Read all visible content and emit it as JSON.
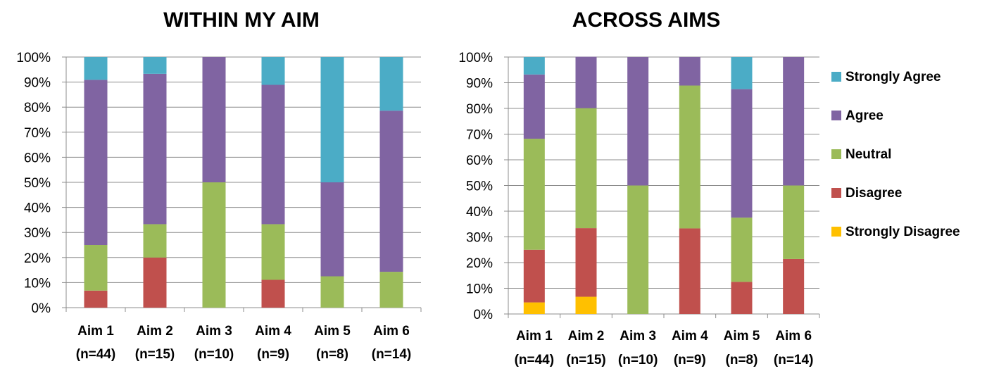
{
  "colors": {
    "Strongly Agree": "#4BACC6",
    "Agree": "#8064A2",
    "Neutral": "#9BBB59",
    "Disagree": "#C0504D",
    "Strongly Disagree": "#FFC000"
  },
  "legend": {
    "items": [
      "Strongly Agree",
      "Agree",
      "Neutral",
      "Disagree",
      "Strongly Disagree"
    ],
    "placement": "right"
  },
  "chart_data": [
    {
      "type": "bar",
      "stacked": true,
      "normalized": true,
      "title": "WITHIN MY AIM",
      "categories": [
        "Aim 1",
        "Aim 2",
        "Aim 3",
        "Aim 4",
        "Aim 5",
        "Aim 6"
      ],
      "category_sublabels": [
        "(n=44)",
        "(n=15)",
        "(n=10)",
        "(n=9)",
        "(n=8)",
        "(n=14)"
      ],
      "yticks": [
        "0%",
        "10%",
        "20%",
        "30%",
        "40%",
        "50%",
        "60%",
        "70%",
        "80%",
        "90%",
        "100%"
      ],
      "ylim": [
        0,
        100
      ],
      "grid": true,
      "series": [
        {
          "name": "Strongly Disagree",
          "values": [
            0,
            0,
            0,
            0,
            0,
            0
          ]
        },
        {
          "name": "Disagree",
          "values": [
            6.8,
            20,
            0,
            11.1,
            0,
            0
          ]
        },
        {
          "name": "Neutral",
          "values": [
            18.2,
            13.3,
            50,
            22.2,
            12.5,
            14.3
          ]
        },
        {
          "name": "Agree",
          "values": [
            65.9,
            60,
            50,
            55.6,
            37.5,
            64.3
          ]
        },
        {
          "name": "Strongly Agree",
          "values": [
            9.1,
            6.7,
            0,
            11.1,
            50,
            21.4
          ]
        }
      ]
    },
    {
      "type": "bar",
      "stacked": true,
      "normalized": true,
      "title": "ACROSS AIMS",
      "categories": [
        "Aim 1",
        "Aim 2",
        "Aim 3",
        "Aim 4",
        "Aim 5",
        "Aim 6"
      ],
      "category_sublabels": [
        "(n=44)",
        "(n=15)",
        "(n=10)",
        "(n=9)",
        "(n=8)",
        "(n=14)"
      ],
      "yticks": [
        "0%",
        "10%",
        "20%",
        "30%",
        "40%",
        "50%",
        "60%",
        "70%",
        "80%",
        "90%",
        "100%"
      ],
      "ylim": [
        0,
        100
      ],
      "grid": true,
      "series": [
        {
          "name": "Strongly Disagree",
          "values": [
            4.5,
            6.7,
            0,
            0,
            0,
            0
          ]
        },
        {
          "name": "Disagree",
          "values": [
            20.5,
            26.7,
            0,
            33.3,
            12.5,
            21.4
          ]
        },
        {
          "name": "Neutral",
          "values": [
            43.2,
            46.7,
            50,
            55.6,
            25,
            28.6
          ]
        },
        {
          "name": "Agree",
          "values": [
            25,
            20,
            50,
            11.1,
            50,
            50
          ]
        },
        {
          "name": "Strongly Agree",
          "values": [
            6.8,
            0,
            0,
            0,
            12.5,
            0
          ]
        }
      ]
    }
  ]
}
